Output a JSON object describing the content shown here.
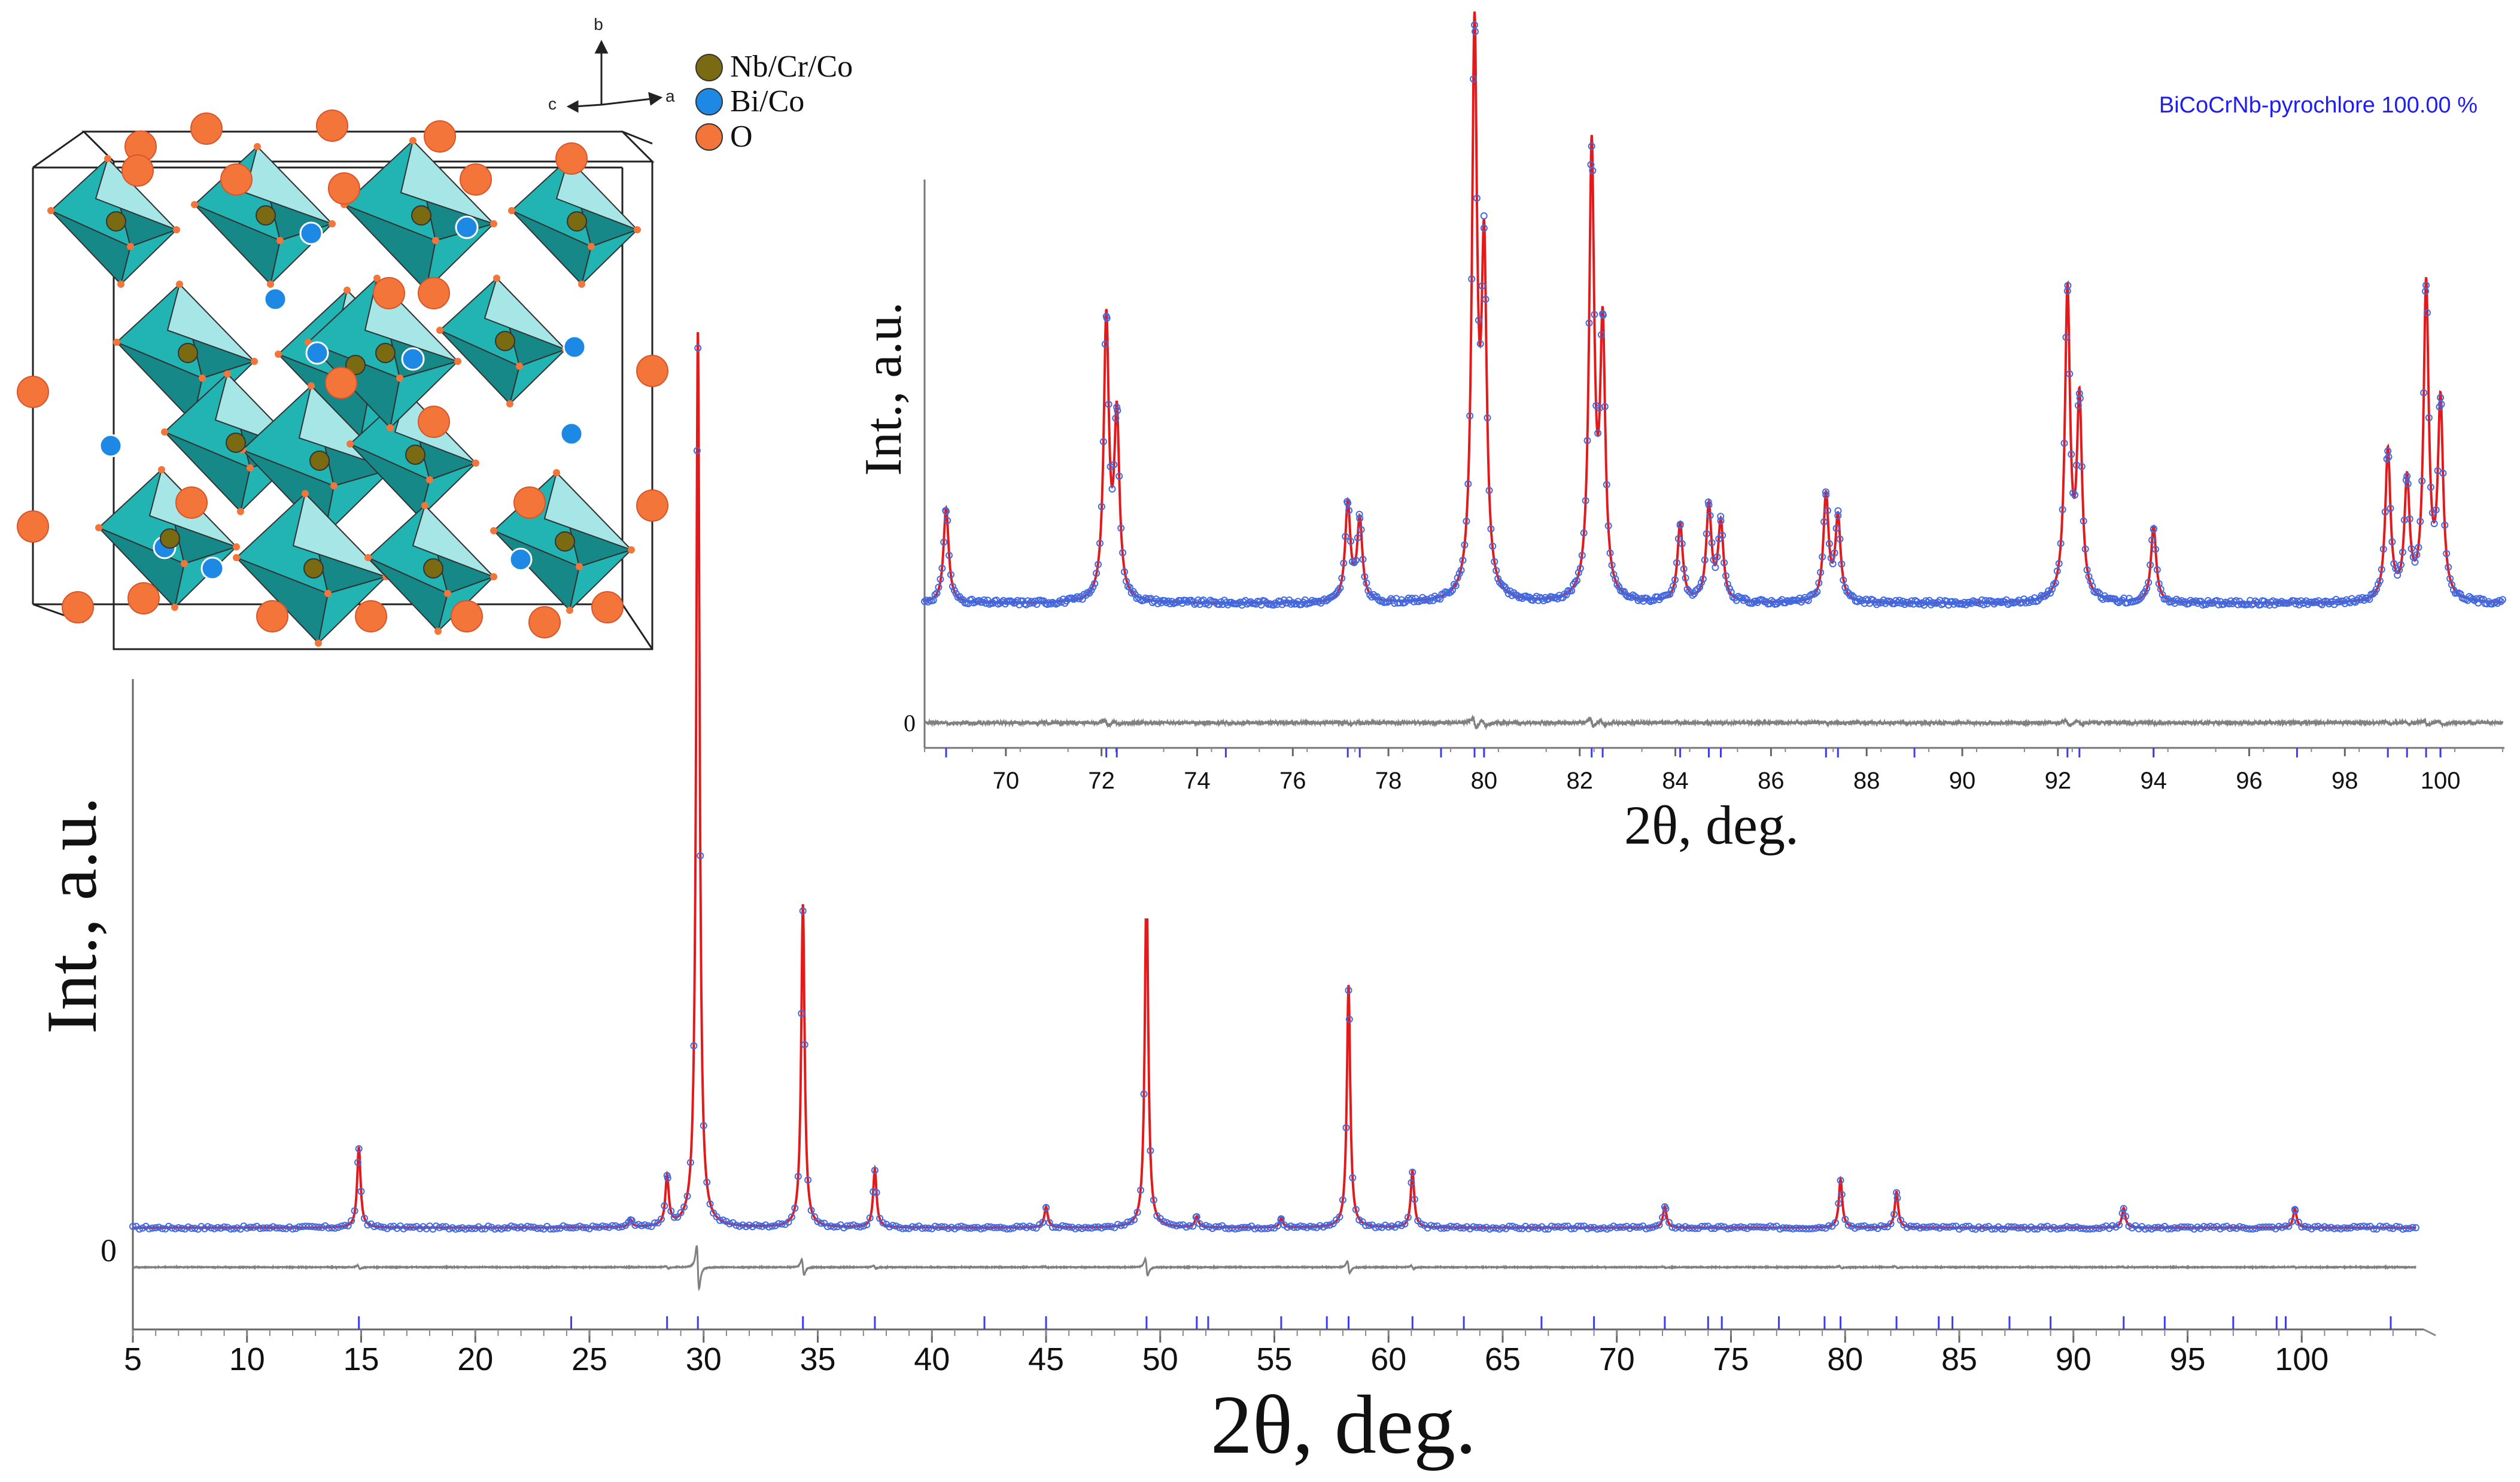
{
  "chart_data": [
    {
      "id": "main",
      "type": "line",
      "title": "",
      "xlabel": "2θ, deg.",
      "ylabel": "Int., a.u.",
      "xlim": [
        5,
        105
      ],
      "ylim": [
        0,
        100
      ],
      "x_ticks": [
        5,
        10,
        15,
        20,
        25,
        30,
        35,
        40,
        45,
        50,
        55,
        60,
        65,
        70,
        75,
        80,
        85,
        90,
        95,
        100
      ],
      "y_tick_labels": [
        {
          "value": 0,
          "label": "0"
        }
      ],
      "background": 1.2,
      "peaks": [
        {
          "x": 14.9,
          "h": 9.0
        },
        {
          "x": 26.8,
          "h": 0.8
        },
        {
          "x": 28.4,
          "h": 5.5
        },
        {
          "x": 29.75,
          "h": 100.0
        },
        {
          "x": 34.35,
          "h": 36.0
        },
        {
          "x": 37.5,
          "h": 6.5
        },
        {
          "x": 45.0,
          "h": 2.3
        },
        {
          "x": 49.4,
          "h": 39.0
        },
        {
          "x": 51.6,
          "h": 1.2
        },
        {
          "x": 55.3,
          "h": 1.0
        },
        {
          "x": 58.25,
          "h": 27.0
        },
        {
          "x": 61.05,
          "h": 6.3
        },
        {
          "x": 72.1,
          "h": 2.4
        },
        {
          "x": 79.8,
          "h": 5.4
        },
        {
          "x": 82.25,
          "h": 4.0
        },
        {
          "x": 92.2,
          "h": 2.2
        },
        {
          "x": 99.7,
          "h": 2.1
        }
      ],
      "series": [
        {
          "name": "observed",
          "color": "#4169E1",
          "style": "markers"
        },
        {
          "name": "calculated",
          "color": "#E31A1C",
          "style": "line"
        },
        {
          "name": "difference",
          "color": "#808080",
          "style": "line"
        }
      ],
      "reflections": [
        14.9,
        24.2,
        28.4,
        29.75,
        34.35,
        37.5,
        42.3,
        45.0,
        49.4,
        51.6,
        52.1,
        55.3,
        57.3,
        58.25,
        61.05,
        63.3,
        66.7,
        69.0,
        72.1,
        74.0,
        74.6,
        77.1,
        79.1,
        79.8,
        82.25,
        84.1,
        84.7,
        87.2,
        89.0,
        92.2,
        94.0,
        97.0,
        98.9,
        99.3,
        103.9
      ]
    },
    {
      "id": "inset",
      "type": "line",
      "title": "",
      "xlabel": "2θ, deg.",
      "ylabel": "Int., a.u.",
      "xlim": [
        68.3,
        101.3
      ],
      "ylim": [
        0,
        100
      ],
      "x_ticks": [
        70,
        72,
        74,
        76,
        78,
        80,
        82,
        84,
        86,
        88,
        90,
        92,
        94,
        96,
        98,
        100
      ],
      "y_tick_labels": [
        {
          "value": 0,
          "label": "0"
        }
      ],
      "background": 13.0,
      "legend": "BiCoCrNb-pyrochlore 100.00 %",
      "legend_color": "#1E1EEE",
      "peaks": [
        {
          "x": 68.75,
          "h": 17.0
        },
        {
          "x": 72.1,
          "h": 50.0
        },
        {
          "x": 72.32,
          "h": 32.0
        },
        {
          "x": 77.15,
          "h": 17.5
        },
        {
          "x": 77.4,
          "h": 14.5
        },
        {
          "x": 79.8,
          "h": 100.0
        },
        {
          "x": 80.0,
          "h": 59.0
        },
        {
          "x": 82.25,
          "h": 80.0
        },
        {
          "x": 82.48,
          "h": 47.0
        },
        {
          "x": 84.1,
          "h": 14.0
        },
        {
          "x": 84.7,
          "h": 17.0
        },
        {
          "x": 84.95,
          "h": 14.0
        },
        {
          "x": 87.15,
          "h": 19.0
        },
        {
          "x": 87.4,
          "h": 15.0
        },
        {
          "x": 92.2,
          "h": 55.0
        },
        {
          "x": 92.45,
          "h": 35.0
        },
        {
          "x": 94.0,
          "h": 13.6
        },
        {
          "x": 98.9,
          "h": 27.0
        },
        {
          "x": 99.3,
          "h": 21.0
        },
        {
          "x": 99.7,
          "h": 56.0
        },
        {
          "x": 100.0,
          "h": 35.0
        }
      ],
      "series": [
        {
          "name": "observed",
          "color": "#4169E1",
          "style": "markers"
        },
        {
          "name": "calculated",
          "color": "#E31A1C",
          "style": "line"
        },
        {
          "name": "difference",
          "color": "#808080",
          "style": "line"
        }
      ],
      "reflections": [
        68.75,
        72.1,
        72.32,
        74.6,
        77.15,
        77.4,
        79.1,
        79.8,
        80.0,
        82.25,
        82.48,
        84.1,
        84.7,
        84.95,
        87.15,
        87.4,
        89.0,
        92.2,
        92.45,
        94.0,
        97.0,
        98.9,
        99.3,
        99.7,
        100.0
      ]
    }
  ],
  "structure": {
    "axes": {
      "a": "a",
      "b": "b",
      "c": "c"
    },
    "legend": [
      {
        "label": "Nb/Cr/Co",
        "color": "#7A6A12"
      },
      {
        "label": "Bi/Co",
        "color": "#1E88E5"
      },
      {
        "label": "O",
        "color": "#F4753A"
      }
    ],
    "colors": {
      "polyhedron": "#22B3B3",
      "polyhedron_dark": "#168888",
      "polyhedron_light": "#A7E6E6",
      "edge": "#333333",
      "cell": "#222222"
    }
  }
}
